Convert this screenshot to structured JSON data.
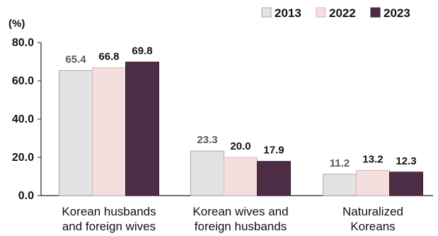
{
  "chart_data": {
    "type": "bar",
    "unit_label": "(%)",
    "categories": [
      [
        "Korean husbands",
        "and foreign wives"
      ],
      [
        "Korean wives and",
        "foreign husbands"
      ],
      [
        "Naturalized",
        "Koreans"
      ]
    ],
    "series": [
      {
        "name": "2013",
        "values": [
          65.4,
          23.3,
          11.2
        ],
        "value_labels": [
          "65.4",
          "23.3",
          "11.2"
        ],
        "color": "#e2e2e2",
        "stroke": "#a9a9a9",
        "label_color": "#595959"
      },
      {
        "name": "2022",
        "values": [
          66.8,
          20.0,
          13.2
        ],
        "value_labels": [
          "66.8",
          "20.0",
          "13.2"
        ],
        "color": "#f5dede",
        "stroke": "#d9b5b5",
        "label_color": "#111111"
      },
      {
        "name": "2023",
        "values": [
          69.8,
          17.9,
          12.3
        ],
        "value_labels": [
          "69.8",
          "17.9",
          "12.3"
        ],
        "color": "#4d2d45",
        "stroke": "#3a2034",
        "label_color": "#111111"
      }
    ],
    "yticks": [
      "0.0",
      "20.0",
      "40.0",
      "60.0",
      "80.0"
    ],
    "ylim": [
      0,
      80
    ],
    "grid": false,
    "legend_position": "top-right"
  }
}
